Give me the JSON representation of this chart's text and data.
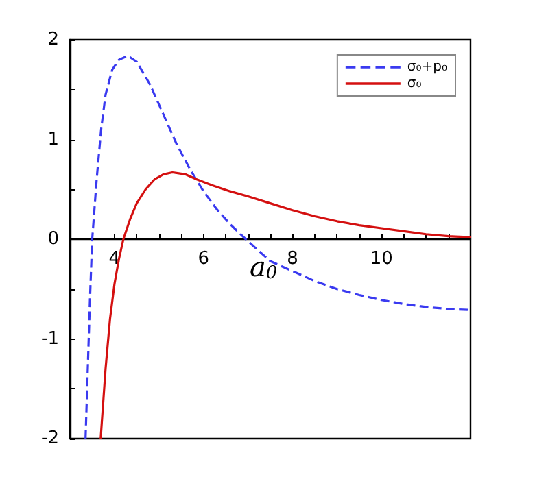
{
  "chart_data": {
    "type": "line",
    "xlabel": "a$_{0}$",
    "xlim": [
      3,
      12
    ],
    "xticks": [
      {
        "value": 3.5,
        "label": null
      },
      4,
      {
        "value": 4.5,
        "label": null
      },
      {
        "value": 5,
        "label": null
      },
      {
        "value": 5.5,
        "label": null
      },
      6,
      {
        "value": 6.5,
        "label": null
      },
      {
        "value": 7,
        "label": null
      },
      {
        "value": 7.5,
        "label": null
      },
      8,
      {
        "value": 8.5,
        "label": null
      },
      {
        "value": 9,
        "label": null
      },
      {
        "value": 9.5,
        "label": null
      },
      10,
      {
        "value": 10.5,
        "label": null
      },
      {
        "value": 11,
        "label": null
      },
      {
        "value": 11.5,
        "label": null
      }
    ],
    "ylim": [
      -2,
      2
    ],
    "yticks": [
      -2,
      {
        "value": -1.5,
        "label": null
      },
      -1,
      {
        "value": -0.5,
        "label": null
      },
      0,
      {
        "value": 0.5,
        "label": null
      },
      1,
      {
        "value": 1.5,
        "label": null
      },
      2
    ],
    "grid": false,
    "legend": "top right",
    "marker": "none",
    "series": [
      {
        "name": "σ₀+p₀",
        "color": "#3a3af0",
        "line_style": "dashed",
        "x": [
          3.35,
          3.4,
          3.45,
          3.5,
          3.6,
          3.7,
          3.8,
          3.95,
          4.1,
          4.3,
          4.5,
          4.8,
          5.1,
          5.4,
          5.7,
          6.0,
          6.3,
          6.6,
          6.95,
          7.5,
          8,
          8.5,
          9,
          9.5,
          10,
          10.5,
          11,
          11.5,
          12
        ],
        "values": [
          -2,
          -1.3,
          -0.6,
          0,
          0.6,
          1.1,
          1.45,
          1.7,
          1.8,
          1.84,
          1.78,
          1.55,
          1.25,
          0.95,
          0.7,
          0.48,
          0.3,
          0.15,
          0,
          -0.22,
          -0.32,
          -0.42,
          -0.5,
          -0.56,
          -0.61,
          -0.65,
          -0.68,
          -0.7,
          -0.71
        ]
      },
      {
        "name": "σ₀",
        "color": "#d41010",
        "line_style": "solid",
        "x": [
          3.69,
          3.8,
          3.9,
          4.0,
          4.1,
          4.2,
          4.35,
          4.5,
          4.7,
          4.9,
          5.1,
          5.3,
          5.6,
          5.85,
          6.2,
          6.6,
          7.0,
          7.5,
          8,
          8.5,
          9,
          9.5,
          10,
          10.5,
          11,
          11.5,
          12
        ],
        "values": [
          -2,
          -1.3,
          -0.8,
          -0.45,
          -0.2,
          0,
          0.2,
          0.36,
          0.5,
          0.6,
          0.65,
          0.67,
          0.65,
          0.6,
          0.54,
          0.48,
          0.43,
          0.36,
          0.29,
          0.23,
          0.18,
          0.14,
          0.11,
          0.08,
          0.05,
          0.03,
          0.02
        ]
      }
    ]
  }
}
